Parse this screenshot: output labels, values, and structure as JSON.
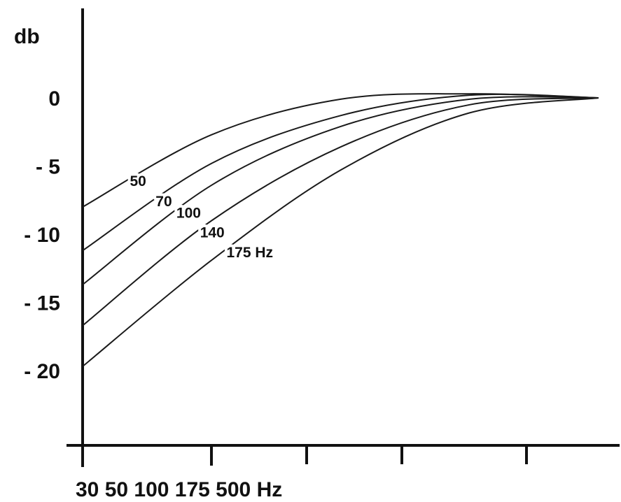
{
  "chart_data": {
    "type": "line",
    "title": "",
    "ylabel": "db",
    "xlabel": "",
    "x_tick_label_text": "30 50 100 175 500 Hz",
    "ylim": [
      -25,
      6.5
    ],
    "y_ticks": [
      {
        "value": 0,
        "label": "0"
      },
      {
        "value": -5,
        "label": "- 5"
      },
      {
        "value": -10,
        "label": "- 10"
      },
      {
        "value": -15,
        "label": "- 15"
      },
      {
        "value": -20,
        "label": "- 20"
      }
    ],
    "x": [
      0,
      0.25,
      0.5,
      0.75,
      1.0
    ],
    "grid": false,
    "series": [
      {
        "name": "50",
        "label": "50",
        "values": [
          -8.0,
          -2.7,
          -0.1,
          0.3,
          0
        ]
      },
      {
        "name": "70",
        "label": "70",
        "values": [
          -11.2,
          -4.8,
          -1.3,
          0.2,
          0
        ]
      },
      {
        "name": "100",
        "label": "100",
        "values": [
          -13.7,
          -6.4,
          -2.1,
          -0.1,
          0
        ]
      },
      {
        "name": "140",
        "label": "140",
        "values": [
          -16.7,
          -9.0,
          -3.6,
          -0.5,
          0
        ]
      },
      {
        "name": "175 Hz",
        "label": "175 Hz",
        "values": [
          -19.7,
          -11.9,
          -5.3,
          -1.1,
          0
        ]
      }
    ]
  }
}
